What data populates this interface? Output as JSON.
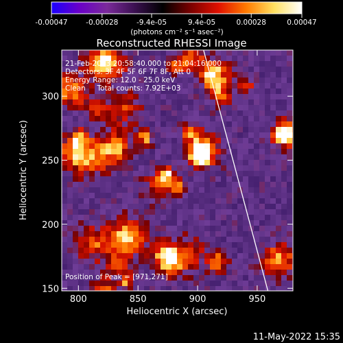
{
  "colorbar": {
    "tick_labels": [
      "-0.00047",
      "-0.00028",
      "-9.4e-05",
      "9.4e-05",
      "0.00028",
      "0.00047"
    ],
    "tick_values": [
      -0.00047,
      -0.00028,
      -9.4e-05,
      9.4e-05,
      0.00028,
      0.00047
    ],
    "range": [
      -0.00047,
      0.00047
    ],
    "unit_label": "(photons cm⁻² s⁻¹ asec⁻²)",
    "colors": [
      "#1a00ff",
      "#6a00c8",
      "#7a2a9a",
      "#3a1050",
      "#000000",
      "#7a0000",
      "#e01000",
      "#ff7a00",
      "#ffe060",
      "#ffffff"
    ]
  },
  "chart_data": {
    "type": "heatmap",
    "title": "Reconstructed RHESSI Image",
    "xlabel": "Heliocentric X (arcsec)",
    "ylabel": "Heliocentric Y (arcsec)",
    "xlim": [
      786,
      980
    ],
    "ylim": [
      148,
      336
    ],
    "xticks": [
      800,
      850,
      900,
      950
    ],
    "yticks": [
      150,
      200,
      250,
      300
    ],
    "annotations": [
      "21-Feb-2013 20:58:40.000 to 21:04:16.000",
      "Detectors: 3F 4F 5F 6F 7F 8F, Att 0",
      "Energy Range: 12.0 - 25.0 keV",
      "Clean     Total counts: 7.92E+03"
    ],
    "peak_label": "Position of Peak = [971,271]",
    "peak_position": [
      971,
      271
    ],
    "limb_line": [
      [
        905,
        336
      ],
      [
        959,
        148
      ]
    ]
  },
  "footer": {
    "timestamp": "11-May-2022 15:35"
  }
}
